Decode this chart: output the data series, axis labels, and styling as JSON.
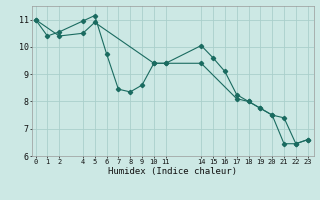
{
  "xlabel": "Humidex (Indice chaleur)",
  "background_color": "#cce8e4",
  "grid_color": "#aacfcb",
  "line_color": "#1a6b60",
  "line1_x": [
    0,
    1,
    2,
    4,
    5,
    6,
    7,
    8,
    9,
    10,
    11,
    14,
    15,
    16,
    17,
    18,
    19,
    20,
    21,
    22,
    23
  ],
  "line1_y": [
    11.0,
    10.4,
    10.55,
    10.95,
    11.15,
    9.75,
    8.45,
    8.35,
    8.6,
    9.4,
    9.4,
    10.05,
    9.6,
    9.1,
    8.25,
    8.0,
    7.75,
    7.5,
    6.45,
    6.45,
    6.6
  ],
  "line2_x": [
    0,
    2,
    4,
    5,
    10,
    11,
    14,
    17,
    18,
    19,
    20,
    21,
    22,
    23
  ],
  "line2_y": [
    11.0,
    10.4,
    10.5,
    10.9,
    9.4,
    9.4,
    9.4,
    8.1,
    8.0,
    7.75,
    7.5,
    7.4,
    6.45,
    6.6
  ],
  "ylim": [
    6.0,
    11.5
  ],
  "xlim": [
    -0.3,
    23.5
  ],
  "xticks": [
    0,
    1,
    2,
    4,
    5,
    6,
    7,
    8,
    9,
    10,
    11,
    14,
    15,
    16,
    17,
    18,
    19,
    20,
    21,
    22,
    23
  ],
  "yticks": [
    6,
    7,
    8,
    9,
    10,
    11
  ],
  "figsize": [
    3.2,
    2.0
  ],
  "dpi": 100
}
